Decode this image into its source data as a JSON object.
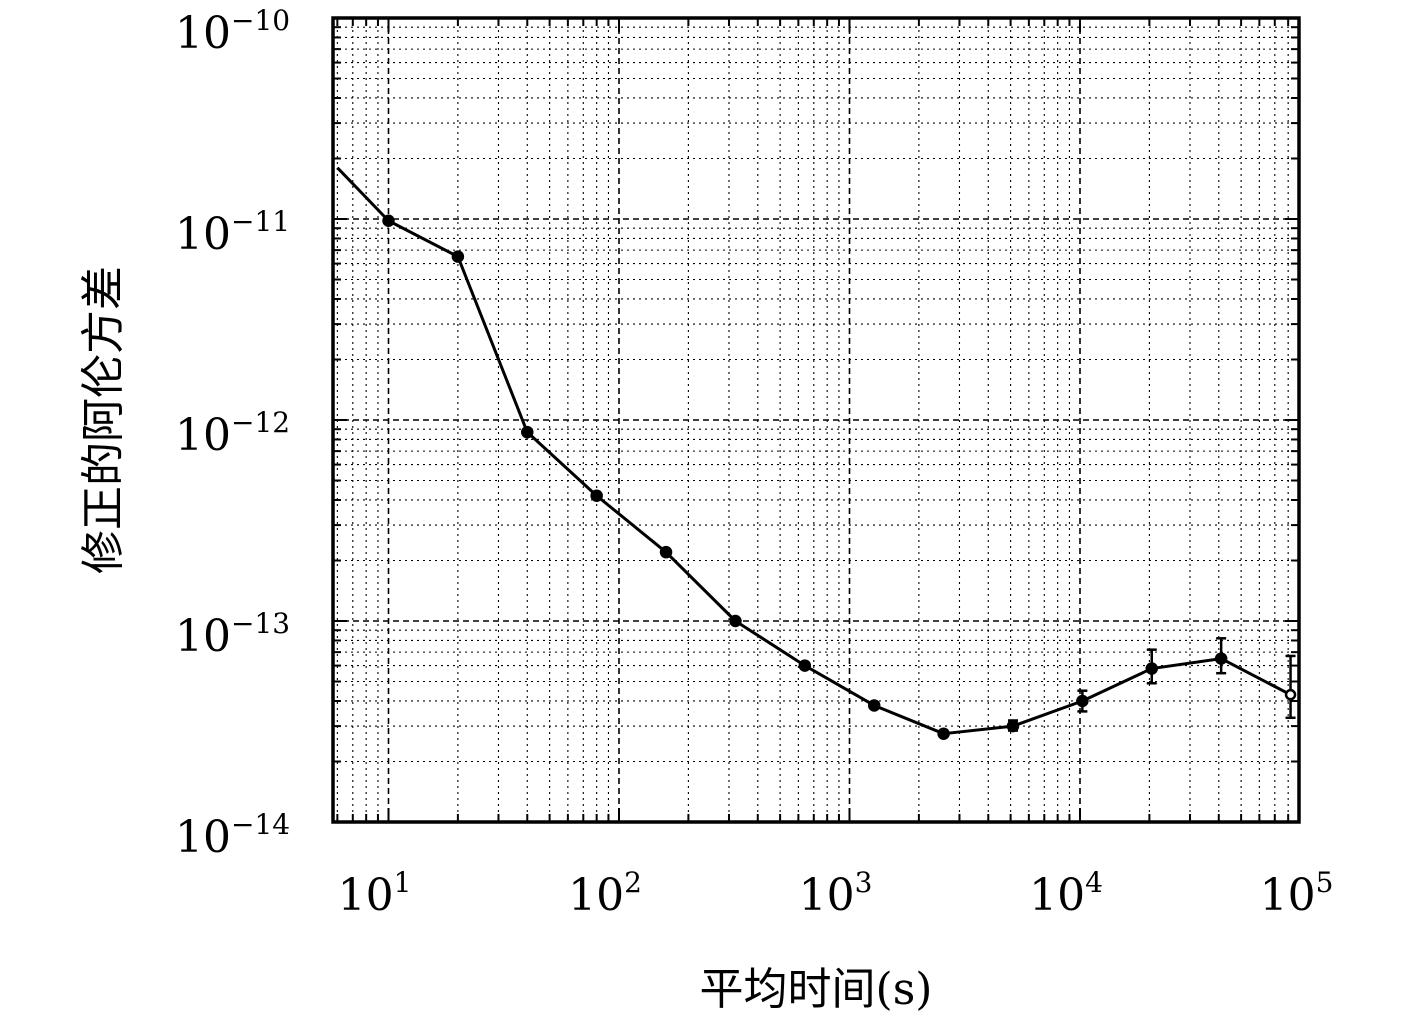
{
  "chart_data": {
    "type": "line",
    "title": "",
    "xlabel": "平均时间(s)",
    "ylabel": "修正的阿伦方差",
    "x_scale": "log",
    "y_scale": "log",
    "xlim": [
      6,
      100000
    ],
    "ylim": [
      1e-14,
      1e-10
    ],
    "x_ticks": [
      {
        "base": "10",
        "exp": "1",
        "value": 10
      },
      {
        "base": "10",
        "exp": "2",
        "value": 100
      },
      {
        "base": "10",
        "exp": "3",
        "value": 1000
      },
      {
        "base": "10",
        "exp": "4",
        "value": 10000
      },
      {
        "base": "10",
        "exp": "5",
        "value": 100000
      }
    ],
    "y_ticks": [
      {
        "base": "10",
        "exp": "−10",
        "value": 1e-10
      },
      {
        "base": "10",
        "exp": "−11",
        "value": 1e-11
      },
      {
        "base": "10",
        "exp": "−12",
        "value": 1e-12
      },
      {
        "base": "10",
        "exp": "−13",
        "value": 1e-13
      },
      {
        "base": "10",
        "exp": "−14",
        "value": 1e-14
      }
    ],
    "grid": true,
    "line_color": "#000000",
    "series": [
      {
        "x": [
          6,
          10,
          20,
          40,
          80,
          160,
          320,
          640,
          1280,
          2560,
          5120,
          10240,
          20480,
          40960,
          81920
        ],
        "y": [
          1.8e-11,
          9.8e-12,
          6.5e-12,
          8.7e-13,
          4.2e-13,
          2.2e-13,
          1e-13,
          6e-14,
          3.8e-14,
          2.75e-14,
          3e-14,
          4e-14,
          5.8e-14,
          6.5e-14,
          4.3e-14
        ],
        "markers": [
          false,
          true,
          true,
          true,
          true,
          true,
          true,
          true,
          true,
          true,
          true,
          true,
          true,
          true,
          true
        ],
        "err_low": [
          null,
          null,
          null,
          null,
          null,
          null,
          null,
          null,
          null,
          null,
          2.85e-14,
          3.55e-14,
          4.9e-14,
          5.5e-14,
          3.3e-14
        ],
        "err_high": [
          null,
          null,
          null,
          null,
          null,
          null,
          null,
          null,
          null,
          null,
          3.2e-14,
          4.5e-14,
          7.2e-14,
          8.2e-14,
          6.7e-14
        ]
      }
    ]
  }
}
